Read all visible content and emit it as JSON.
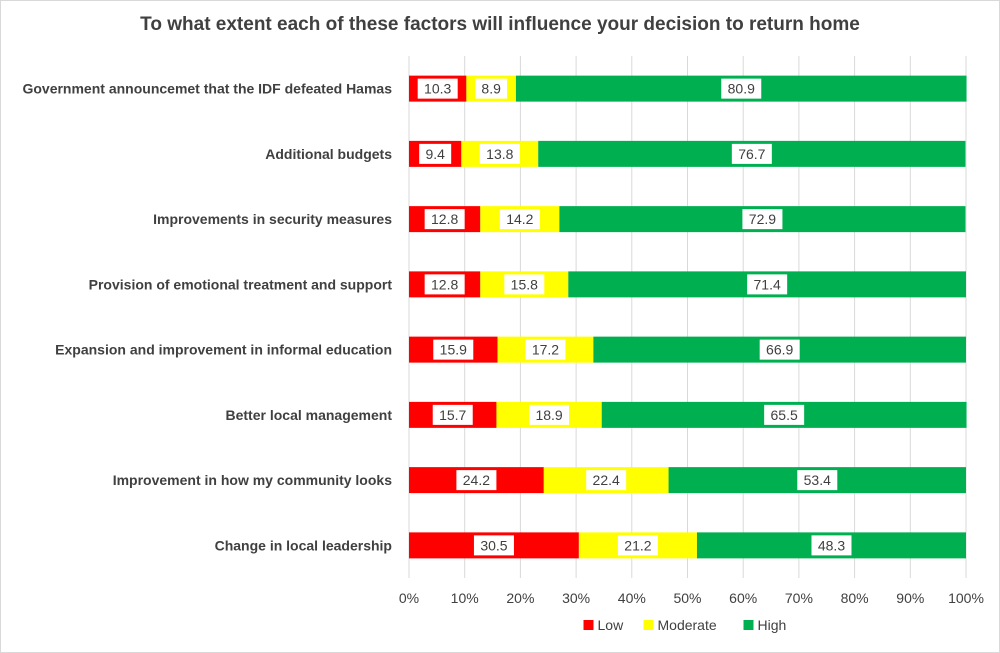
{
  "chart_data": {
    "type": "bar",
    "orientation": "horizontal",
    "stacked": true,
    "title": "To what extent each of these factors will influence your decision to return home",
    "categories": [
      "Government announcemet that the IDF defeated Hamas",
      "Additional budgets",
      "Improvements in security measures",
      "Provision of emotional treatment and support",
      "Expansion and improvement in informal education",
      "Better local management",
      "Improvement in how my community looks",
      "Change in local leadership"
    ],
    "series": [
      {
        "name": "Low",
        "color": "#ff0000",
        "values": [
          10.3,
          9.4,
          12.8,
          12.8,
          15.9,
          15.7,
          24.2,
          30.5
        ]
      },
      {
        "name": "Moderate",
        "color": "#ffff00",
        "values": [
          8.9,
          13.8,
          14.2,
          15.8,
          17.2,
          18.9,
          22.4,
          21.2
        ]
      },
      {
        "name": "High",
        "color": "#00b050",
        "values": [
          80.9,
          76.7,
          72.9,
          71.4,
          66.9,
          65.5,
          53.4,
          48.3
        ]
      }
    ],
    "xlim": [
      0,
      100
    ],
    "x_ticks": [
      "0%",
      "10%",
      "20%",
      "30%",
      "40%",
      "50%",
      "60%",
      "70%",
      "80%",
      "90%",
      "100%"
    ],
    "grid": true,
    "legend_position": "bottom"
  }
}
